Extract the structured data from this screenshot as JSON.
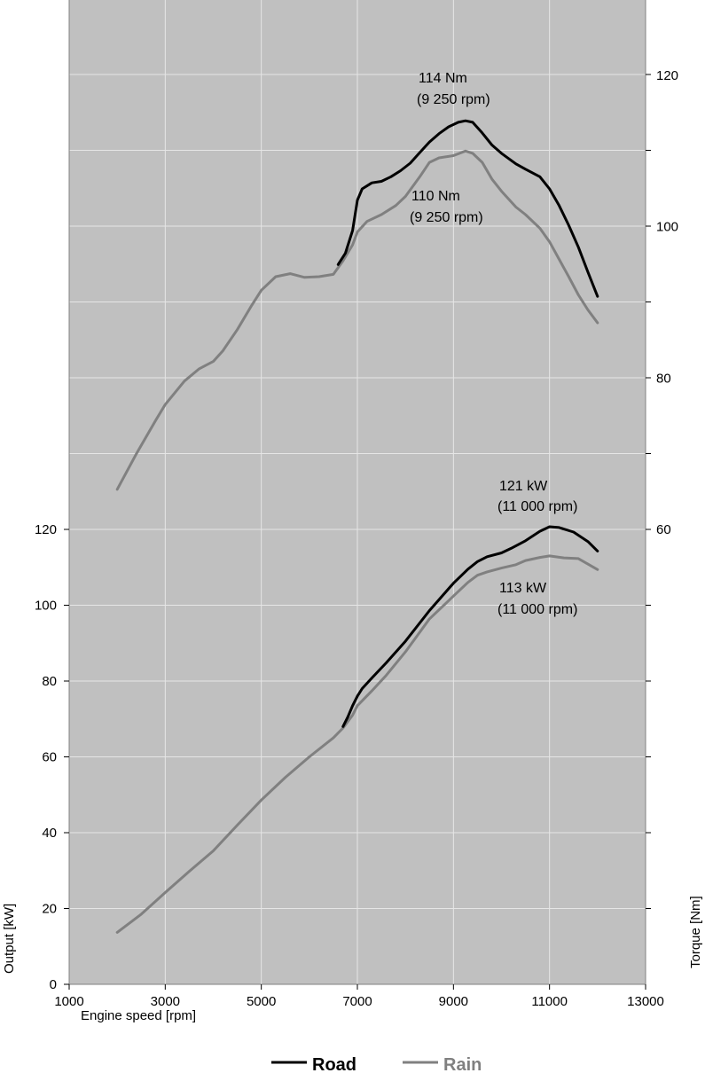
{
  "chart_data": {
    "type": "line",
    "xlabel": "Engine speed [rpm]",
    "ylabel_left": "Output [kW]",
    "ylabel_right": "Torque [Nm]",
    "xlim": [
      1000,
      13000
    ],
    "x_ticks": [
      1000,
      3000,
      5000,
      7000,
      9000,
      11000,
      13000
    ],
    "ylim_left": [
      0,
      120
    ],
    "y_ticks_left": [
      0,
      20,
      40,
      60,
      80,
      100,
      120
    ],
    "y_ticks_right": [
      60,
      80,
      100,
      120
    ],
    "grid": true,
    "background_color": "#c0c0c0",
    "colors": {
      "road": "#000000",
      "rain": "#808080"
    },
    "legend": {
      "placement": "bottom-center",
      "items": [
        {
          "label": "Road",
          "color": "#000000"
        },
        {
          "label": "Rain",
          "color": "#808080"
        }
      ]
    },
    "annotations": {
      "road_torque": [
        "114 Nm",
        "(9 250 rpm)"
      ],
      "rain_torque": [
        "110 Nm",
        "(9 250 rpm)"
      ],
      "road_power": [
        "121 kW",
        "(11 000 rpm)"
      ],
      "rain_power": [
        "113 kW",
        "(11 000 rpm)"
      ]
    },
    "series": [
      {
        "name": "Road",
        "quantity": "torque",
        "axis": "right",
        "color": "#000000",
        "x": [
          6600,
          6750,
          6900,
          7000,
          7100,
          7300,
          7500,
          7700,
          7900,
          8100,
          8300,
          8500,
          8700,
          8900,
          9100,
          9250,
          9400,
          9600,
          9800,
          10000,
          10300,
          10500,
          10800,
          11000,
          11200,
          11400,
          11600,
          11800,
          12000
        ],
        "values": [
          95.0,
          96.5,
          99.5,
          103.5,
          105.0,
          105.8,
          106.0,
          106.6,
          107.4,
          108.4,
          109.8,
          111.2,
          112.3,
          113.2,
          113.8,
          114.0,
          113.8,
          112.4,
          110.8,
          109.7,
          108.3,
          107.6,
          106.6,
          105.0,
          102.8,
          100.2,
          97.3,
          94.0,
          90.8
        ]
      },
      {
        "name": "Rain",
        "quantity": "torque",
        "axis": "right",
        "color": "#808080",
        "x": [
          2000,
          2400,
          2800,
          3000,
          3400,
          3700,
          4000,
          4200,
          4500,
          4800,
          5000,
          5300,
          5600,
          5900,
          6200,
          6500,
          6700,
          6900,
          7000,
          7200,
          7500,
          7800,
          8000,
          8300,
          8500,
          8700,
          9000,
          9250,
          9400,
          9600,
          9800,
          10000,
          10300,
          10500,
          10800,
          11000,
          11200,
          11400,
          11600,
          11800,
          12000
        ],
        "values": [
          65.3,
          70.0,
          74.4,
          76.5,
          79.6,
          81.2,
          82.2,
          83.6,
          86.4,
          89.6,
          91.6,
          93.4,
          93.8,
          93.3,
          93.4,
          93.7,
          95.5,
          97.6,
          99.3,
          100.7,
          101.6,
          102.8,
          104.0,
          106.6,
          108.5,
          109.1,
          109.4,
          110.0,
          109.7,
          108.5,
          106.3,
          104.7,
          102.6,
          101.6,
          99.8,
          98.0,
          95.7,
          93.4,
          91.0,
          89.0,
          87.3
        ]
      },
      {
        "name": "Road",
        "quantity": "power",
        "axis": "left",
        "color": "#000000",
        "x": [
          6700,
          6800,
          6900,
          7000,
          7100,
          7300,
          7600,
          8000,
          8500,
          9000,
          9300,
          9500,
          9700,
          10000,
          10200,
          10500,
          10800,
          11000,
          11200,
          11500,
          11800,
          12000
        ],
        "values": [
          68.0,
          70.5,
          73.5,
          76.0,
          78.0,
          80.8,
          84.8,
          90.5,
          98.6,
          105.8,
          109.5,
          111.5,
          112.8,
          113.8,
          115.0,
          117.0,
          119.5,
          120.7,
          120.5,
          119.3,
          116.8,
          114.3
        ]
      },
      {
        "name": "Rain",
        "quantity": "power",
        "axis": "left",
        "color": "#808080",
        "x": [
          2000,
          2500,
          3000,
          3500,
          4000,
          4500,
          5000,
          5500,
          6000,
          6500,
          6700,
          6900,
          7000,
          7300,
          7600,
          8000,
          8500,
          9000,
          9300,
          9500,
          9700,
          10000,
          10300,
          10500,
          10800,
          11000,
          11300,
          11600,
          12000
        ],
        "values": [
          13.7,
          18.5,
          24.2,
          29.8,
          35.2,
          42.0,
          48.6,
          54.6,
          60.0,
          65.0,
          67.6,
          71.0,
          73.5,
          77.4,
          81.5,
          87.7,
          96.4,
          102.4,
          106.0,
          107.9,
          108.8,
          109.8,
          110.7,
          111.8,
          112.6,
          113.0,
          112.5,
          112.3,
          109.4
        ]
      }
    ]
  }
}
